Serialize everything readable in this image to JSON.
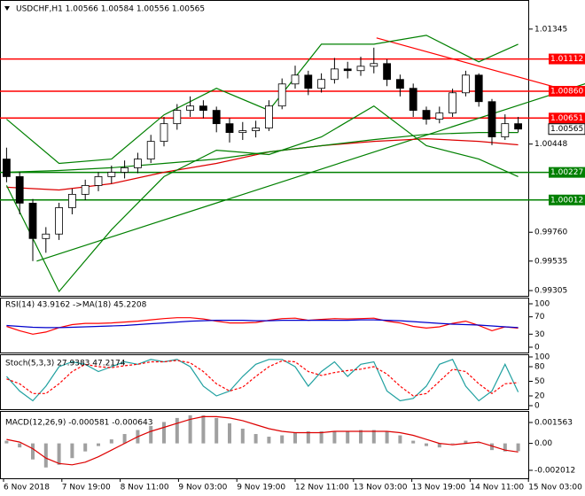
{
  "chart_data": [
    {
      "type": "candlestick",
      "title": "USDCHF,H1 1.00566 1.00584 1.00556 1.00565",
      "open": [
        1.00331,
        1.00194,
        0.99987,
        0.99711,
        0.99746,
        0.99952,
        1.00056,
        1.00125,
        1.00194,
        1.00228,
        1.00263,
        1.00331,
        1.00469,
        1.00607,
        1.00711,
        1.00745,
        1.00711,
        1.00607,
        1.00538,
        1.00552,
        1.00573,
        1.00745,
        1.00917,
        1.00986,
        1.00883,
        1.00952,
        1.01034,
        1.01021,
        1.01055,
        1.01076,
        1.00952,
        1.00883,
        1.00711,
        1.00642,
        1.0069,
        1.00848,
        1.00986,
        1.00779,
        1.00504,
        1.00607
      ],
      "high": [
        1.0042,
        1.0023,
        1.0002,
        0.998,
        0.9999,
        1.001,
        1.0017,
        1.0023,
        1.0028,
        1.0032,
        1.0038,
        1.0052,
        1.0066,
        1.0076,
        1.0082,
        1.0079,
        1.0074,
        1.0065,
        1.0062,
        1.0063,
        1.0079,
        1.0096,
        1.0106,
        1.0102,
        1.01,
        1.0112,
        1.0109,
        1.0113,
        1.012,
        1.0111,
        1.0099,
        1.0092,
        1.0074,
        1.0074,
        1.0088,
        1.0102,
        1.01,
        1.008,
        1.0068,
        1.0066
      ],
      "low": [
        1.0015,
        0.999,
        0.99535,
        0.996,
        0.997,
        0.999,
        1.0001,
        1.0008,
        1.0014,
        1.0018,
        1.0022,
        1.003,
        1.0043,
        1.0056,
        1.0066,
        1.0065,
        1.0054,
        1.0046,
        1.0048,
        1.005,
        1.0055,
        1.0072,
        1.0088,
        1.0083,
        1.0085,
        1.0092,
        1.0096,
        1.0098,
        1.01,
        1.009,
        1.0082,
        1.0066,
        1.006,
        1.0061,
        1.0066,
        1.0082,
        1.0074,
        1.0044,
        1.0048,
        1.0054
      ],
      "close": [
        1.00194,
        0.99987,
        0.99711,
        0.99746,
        0.99952,
        1.00056,
        1.00125,
        1.00194,
        1.00228,
        1.00263,
        1.00331,
        1.00469,
        1.00607,
        1.00711,
        1.00745,
        1.00711,
        1.00607,
        1.00538,
        1.00552,
        1.00573,
        1.00745,
        1.00917,
        1.00986,
        1.00883,
        1.00952,
        1.01034,
        1.01021,
        1.01055,
        1.01076,
        1.00952,
        1.00883,
        1.00711,
        1.00642,
        1.0069,
        1.00848,
        1.00986,
        1.00779,
        1.00504,
        1.00607,
        1.00565
      ],
      "ylim": [
        0.99264,
        1.01572
      ],
      "yticks": [
        1.01345,
        1.00448,
        {
          "value": 0.9976,
          "label": "0.99760"
        },
        0.99535,
        0.99305
      ],
      "overlay_x": [
        0,
        4,
        8,
        12,
        16,
        20,
        24,
        28,
        32,
        36,
        39
      ],
      "overlays": [
        {
          "color": "#dd0000",
          "values": [
            1.00111,
            1.0009,
            1.00139,
            1.00228,
            1.00297,
            1.00387,
            1.00435,
            1.00469,
            1.0049,
            1.00469,
            1.00442
          ]
        },
        {
          "color": "#008000",
          "values": [
            1.00228,
            1.00242,
            1.00263,
            1.00297,
            1.00331,
            1.00387,
            1.00435,
            1.00483,
            1.00524,
            1.00538,
            1.00538
          ]
        },
        {
          "color": "#008000",
          "values": [
            1.00642,
            1.00297,
            1.00331,
            1.00676,
            1.00883,
            1.00711,
            1.01227,
            1.01227,
            1.01296,
            1.0109,
            1.01227
          ]
        },
        {
          "color": "#008000",
          "values": [
            1.00125,
            0.99298,
            0.9978,
            1.00194,
            1.004,
            1.00366,
            1.00504,
            1.00745,
            1.00435,
            1.00331,
            1.00194
          ]
        }
      ],
      "levels": [
        {
          "value": 1.01112,
          "color": "#ff0000"
        },
        {
          "value": 1.0086,
          "label": "1.00860",
          "color": "#ff0000"
        },
        {
          "value": 1.00651,
          "color": "#ff0000"
        },
        {
          "value": 1.00227,
          "color": "#008000"
        },
        {
          "value": 1.00012,
          "color": "#008000"
        }
      ],
      "trendlines": [
        {
          "color": "#ff0000",
          "x": [
            28.2,
            44.1
          ],
          "values": [
            1.01276,
            1.00828
          ]
        },
        {
          "color": "#008000",
          "x": [
            2.3,
            44.1
          ],
          "values": [
            0.99535,
            1.00918
          ]
        }
      ],
      "last": 1.00565,
      "time_labels": [
        "6 Nov 2018",
        "7 Nov 19:00",
        "8 Nov 11:00",
        "9 Nov 03:00",
        "9 Nov 19:00",
        "12 Nov 11:00",
        "13 Nov 03:00",
        "13 Nov 19:00",
        "14 Nov 11:00",
        "15 Nov 03:00"
      ]
    },
    {
      "type": "line",
      "title": "RSI(14) 43.9162 ->MA(18) 45.2208",
      "series": [
        {
          "color": "#ff0000",
          "values": [
            48,
            38,
            30,
            35,
            45,
            52,
            55,
            55,
            56,
            58,
            60,
            63,
            66,
            68,
            68,
            65,
            60,
            56,
            56,
            57,
            62,
            66,
            67,
            62,
            64,
            66,
            65,
            66,
            67,
            60,
            56,
            48,
            44,
            47,
            55,
            60,
            50,
            38,
            47,
            43.9162
          ]
        },
        {
          "color": "#0000cc",
          "values": [
            50,
            48,
            46,
            45,
            45,
            46,
            47,
            48,
            49,
            50,
            52,
            54,
            56,
            58,
            60,
            61,
            62,
            62,
            62,
            61,
            61,
            62,
            62,
            62,
            62,
            62,
            62,
            63,
            63,
            62,
            61,
            59,
            57,
            55,
            53,
            52,
            51,
            49,
            47,
            45.2208
          ]
        }
      ],
      "ylim": [
        0,
        100
      ],
      "yticks": [
        0,
        30,
        70,
        100
      ]
    },
    {
      "type": "line",
      "title": "Stoch(5,3,3) 27.9383 47.2174",
      "series": [
        {
          "color": "#20a0a0",
          "values": [
            60,
            30,
            10,
            40,
            80,
            90,
            85,
            70,
            80,
            90,
            85,
            95,
            90,
            95,
            80,
            40,
            20,
            30,
            60,
            85,
            95,
            95,
            80,
            40,
            70,
            90,
            60,
            85,
            90,
            30,
            10,
            15,
            40,
            85,
            95,
            40,
            10,
            30,
            85,
            27.9383
          ]
        },
        {
          "color": "#ff0000",
          "dash": true,
          "values": [
            55,
            45,
            25,
            25,
            45,
            70,
            85,
            80,
            78,
            82,
            85,
            90,
            90,
            93,
            88,
            70,
            45,
            30,
            38,
            60,
            80,
            92,
            90,
            70,
            62,
            68,
            72,
            75,
            80,
            65,
            40,
            20,
            25,
            50,
            75,
            70,
            45,
            25,
            45,
            47.2174
          ]
        }
      ],
      "ylim": [
        0,
        100
      ],
      "yticks": [
        0,
        20,
        50,
        80,
        100
      ]
    },
    {
      "type": "macd",
      "title": "MACD(12,26,9) -0.000581 -0.000643",
      "histogram": [
        0.0002,
        -0.0003,
        -0.0012,
        -0.0018,
        -0.0016,
        -0.0011,
        -0.0006,
        -0.0002,
        0.0003,
        0.0007,
        0.001,
        0.0013,
        0.0016,
        0.0019,
        0.0021,
        0.0021,
        0.0019,
        0.0015,
        0.0011,
        0.0007,
        0.0005,
        0.0006,
        0.0008,
        0.0009,
        0.0009,
        0.0009,
        0.0009,
        0.001,
        0.001,
        0.0009,
        0.0006,
        0.0002,
        -0.0002,
        -0.0003,
        0,
        0.0002,
        0,
        -0.0005,
        -0.0006,
        -0.000581
      ],
      "histogram_color": "#a0a0a0",
      "signal": [
        0.0003,
        0.0001,
        -0.0004,
        -0.0011,
        -0.0015,
        -0.0016,
        -0.0014,
        -0.001,
        -0.0005,
        0,
        0.0005,
        0.0009,
        0.0012,
        0.0015,
        0.0018,
        0.002,
        0.002,
        0.0019,
        0.0017,
        0.0014,
        0.0011,
        0.0009,
        0.0008,
        0.0008,
        0.0008,
        0.0009,
        0.0009,
        0.0009,
        0.0009,
        0.0009,
        0.0008,
        0.0006,
        0.0003,
        0,
        -0.0001,
        0,
        0.0001,
        -0.0002,
        -0.0005,
        -0.000643
      ],
      "signal_color": "#dd0000",
      "ylim": [
        -0.002608,
        0.002357
      ],
      "yticks": [
        0.001563,
        {
          "value": 0,
          "label": "0.00"
        },
        -0.002012
      ]
    }
  ]
}
